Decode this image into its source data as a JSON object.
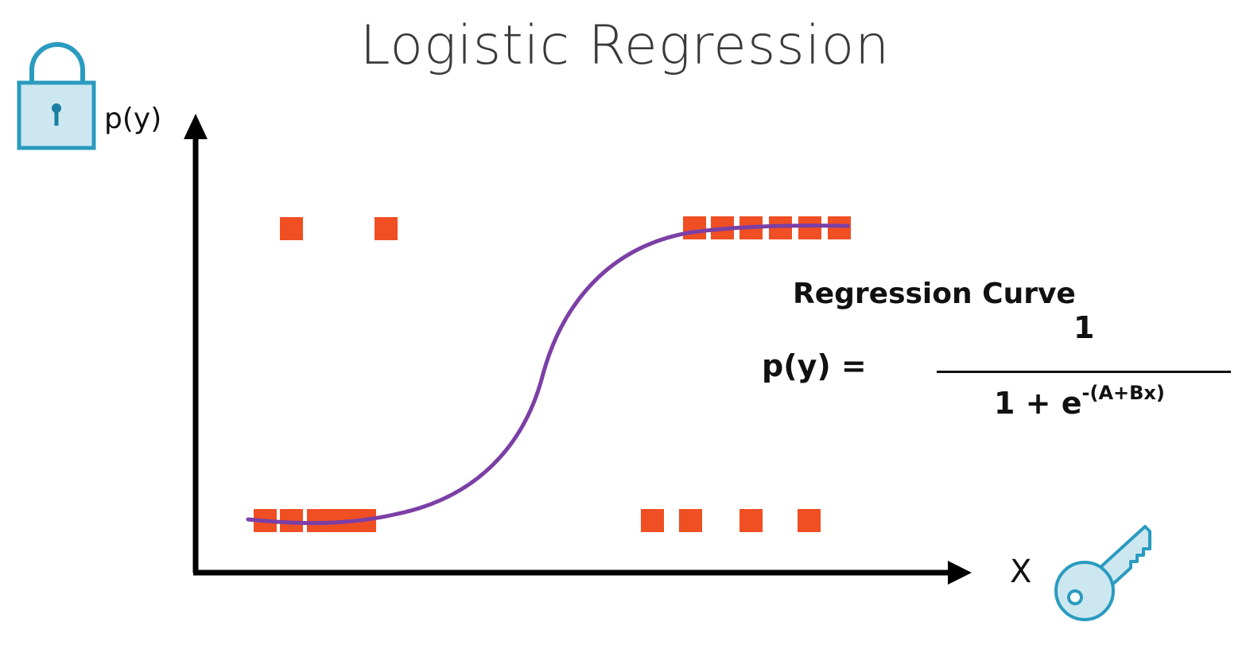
{
  "title": "Logistic Regression",
  "axes": {
    "y_label": "p(y)",
    "x_label": "X"
  },
  "annotation": {
    "label": "Regression Curve",
    "equation": {
      "lhs": "p(y) =",
      "numerator": "1",
      "denominator_base": "1 + e",
      "denominator_exponent": "-(A+Bx)"
    }
  },
  "icons": {
    "lock": "padlock-icon",
    "key": "key-icon"
  },
  "colors": {
    "points": "#f04e23",
    "curve": "#7b3fa6",
    "icon_fill": "#cde7f0",
    "icon_stroke": "#2a9bbf",
    "axis": "#000000"
  }
}
